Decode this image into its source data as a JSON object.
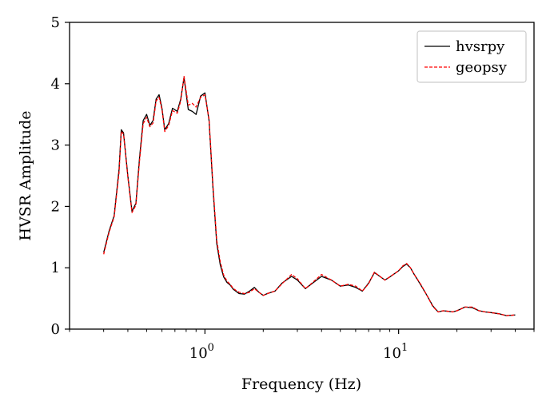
{
  "chart_data": {
    "type": "line",
    "xlabel": "Frequency (Hz)",
    "ylabel": "HVSR Amplitude",
    "xscale": "log",
    "xlim": [
      0.2,
      50
    ],
    "ylim": [
      0,
      5
    ],
    "grid": false,
    "legend_position": "top-right",
    "y_ticks": [
      "0",
      "1",
      "2",
      "3",
      "4",
      "5"
    ],
    "x_ticks": [
      {
        "value": 1,
        "base": "10",
        "exp": "0"
      },
      {
        "value": 10,
        "base": "10",
        "exp": "1"
      }
    ],
    "series": [
      {
        "name": "hvsrpy",
        "color": "#000000",
        "style": "solid",
        "x": [
          0.3,
          0.32,
          0.34,
          0.36,
          0.37,
          0.38,
          0.4,
          0.42,
          0.44,
          0.46,
          0.48,
          0.5,
          0.52,
          0.54,
          0.56,
          0.58,
          0.6,
          0.62,
          0.65,
          0.68,
          0.72,
          0.75,
          0.78,
          0.82,
          0.86,
          0.9,
          0.95,
          1.0,
          1.05,
          1.1,
          1.15,
          1.2,
          1.25,
          1.3,
          1.35,
          1.4,
          1.5,
          1.6,
          1.7,
          1.8,
          1.9,
          2.0,
          2.1,
          2.3,
          2.5,
          2.8,
          3.0,
          3.3,
          3.6,
          4.0,
          4.5,
          5.0,
          5.5,
          6.0,
          6.5,
          7.0,
          7.5,
          8.0,
          8.5,
          9.0,
          10.0,
          10.5,
          11.0,
          11.5,
          12.0,
          13.0,
          14.0,
          15.0,
          16.0,
          17.0,
          18.0,
          19.0,
          20.0,
          22.0,
          24.0,
          26.0,
          28.0,
          30.0,
          33.0,
          36.0,
          40.0
        ],
        "y": [
          1.25,
          1.6,
          1.85,
          2.6,
          3.25,
          3.2,
          2.5,
          1.92,
          2.05,
          2.8,
          3.4,
          3.5,
          3.32,
          3.4,
          3.75,
          3.82,
          3.6,
          3.25,
          3.35,
          3.6,
          3.55,
          3.75,
          4.1,
          3.58,
          3.55,
          3.5,
          3.8,
          3.85,
          3.4,
          2.3,
          1.4,
          1.05,
          0.85,
          0.76,
          0.72,
          0.65,
          0.58,
          0.57,
          0.62,
          0.68,
          0.6,
          0.55,
          0.58,
          0.62,
          0.75,
          0.86,
          0.8,
          0.66,
          0.75,
          0.86,
          0.8,
          0.7,
          0.72,
          0.68,
          0.62,
          0.75,
          0.92,
          0.86,
          0.8,
          0.85,
          0.95,
          1.02,
          1.06,
          1.0,
          0.9,
          0.72,
          0.55,
          0.38,
          0.28,
          0.3,
          0.29,
          0.28,
          0.3,
          0.36,
          0.35,
          0.3,
          0.28,
          0.27,
          0.25,
          0.22,
          0.23
        ]
      },
      {
        "name": "geopsy",
        "color": "#ff0000",
        "style": "dashed",
        "x": [
          0.3,
          0.32,
          0.34,
          0.36,
          0.37,
          0.38,
          0.4,
          0.42,
          0.44,
          0.46,
          0.48,
          0.5,
          0.52,
          0.54,
          0.56,
          0.58,
          0.6,
          0.62,
          0.65,
          0.68,
          0.72,
          0.75,
          0.78,
          0.82,
          0.86,
          0.9,
          0.95,
          1.0,
          1.05,
          1.1,
          1.15,
          1.2,
          1.25,
          1.3,
          1.35,
          1.4,
          1.5,
          1.6,
          1.7,
          1.8,
          1.9,
          2.0,
          2.1,
          2.3,
          2.5,
          2.8,
          3.0,
          3.3,
          3.6,
          4.0,
          4.5,
          5.0,
          5.5,
          6.0,
          6.5,
          7.0,
          7.5,
          8.0,
          8.5,
          9.0,
          10.0,
          10.5,
          11.0,
          11.5,
          12.0,
          13.0,
          14.0,
          15.0,
          16.0,
          17.0,
          18.0,
          19.0,
          20.0,
          22.0,
          24.0,
          26.0,
          28.0,
          30.0,
          33.0,
          36.0,
          40.0
        ],
        "y": [
          1.22,
          1.58,
          1.83,
          2.55,
          3.22,
          3.18,
          2.48,
          1.9,
          2.02,
          2.75,
          3.35,
          3.45,
          3.3,
          3.36,
          3.72,
          3.78,
          3.58,
          3.22,
          3.32,
          3.56,
          3.52,
          3.72,
          4.12,
          3.65,
          3.68,
          3.62,
          3.78,
          3.82,
          3.42,
          2.35,
          1.45,
          1.1,
          0.88,
          0.78,
          0.73,
          0.66,
          0.6,
          0.58,
          0.6,
          0.66,
          0.6,
          0.55,
          0.58,
          0.62,
          0.74,
          0.89,
          0.82,
          0.66,
          0.76,
          0.89,
          0.8,
          0.7,
          0.73,
          0.7,
          0.62,
          0.74,
          0.93,
          0.86,
          0.8,
          0.85,
          0.95,
          1.03,
          1.07,
          1.0,
          0.9,
          0.73,
          0.55,
          0.37,
          0.28,
          0.3,
          0.29,
          0.28,
          0.3,
          0.36,
          0.36,
          0.3,
          0.28,
          0.27,
          0.25,
          0.22,
          0.23
        ]
      }
    ]
  }
}
